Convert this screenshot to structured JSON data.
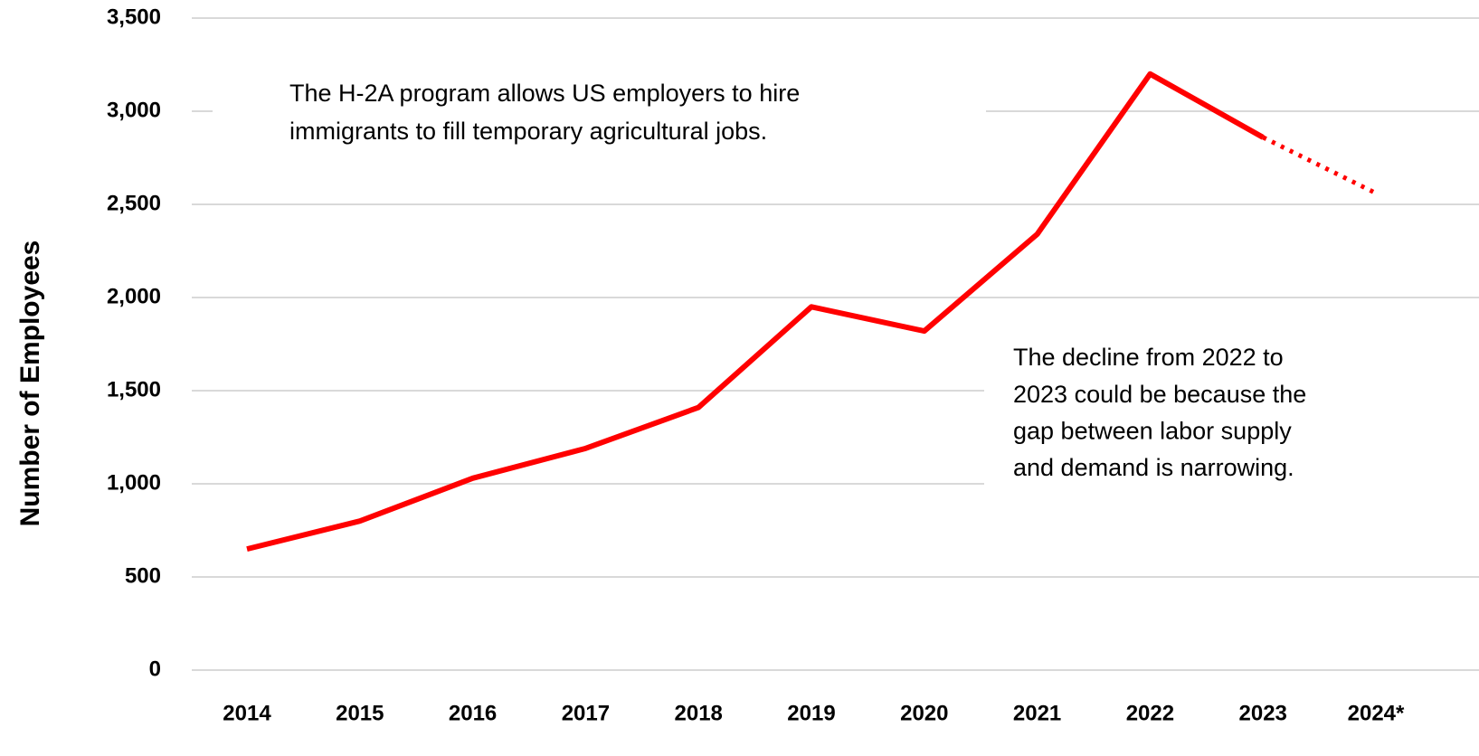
{
  "chart_data": {
    "type": "line",
    "y_label": "Number of Employees",
    "categories": [
      "2014",
      "2015",
      "2016",
      "2017",
      "2018",
      "2019",
      "2020",
      "2021",
      "2022",
      "2023",
      "2024*"
    ],
    "series": [
      {
        "color": "#ff0000",
        "values": [
          650,
          800,
          1030,
          1190,
          1410,
          1950,
          1820,
          2340,
          3200,
          2860,
          2560
        ],
        "dotted_from_index": 9
      }
    ],
    "ylim": [
      0,
      3500
    ],
    "yticks": [
      0,
      500,
      {
        "value": 1000,
        "label": "1,000"
      },
      {
        "value": 1500,
        "label": "1,500"
      },
      {
        "value": 2000,
        "label": "2,000"
      },
      {
        "value": 2500,
        "label": "2,500"
      },
      {
        "value": 3000,
        "label": "3,000"
      },
      {
        "value": 3500,
        "label": "3,500"
      }
    ],
    "grid": true,
    "annotations": [
      {
        "lines": [
          "The H-2A program allows US employers to hire",
          "immigrants to fill temporary agricultural jobs."
        ]
      },
      {
        "lines": [
          "The decline from 2022 to",
          "2023 could be because the",
          "gap between labor supply",
          "and demand is narrowing."
        ]
      }
    ]
  }
}
